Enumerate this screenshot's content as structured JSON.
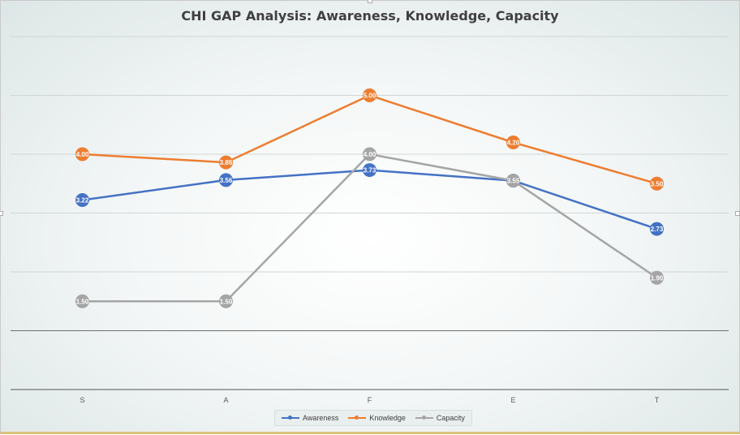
{
  "chart_data": {
    "type": "line",
    "title": "CHI GAP Analysis: Awareness, Knowledge, Capacity",
    "xlabel": "",
    "ylabel": "",
    "categories": [
      "S",
      "A",
      "F",
      "E",
      "T"
    ],
    "ylim": [
      0,
      6
    ],
    "grid": true,
    "legend_position": "bottom",
    "series": [
      {
        "name": "Awareness",
        "color": "#4472c4",
        "values": [
          3.22,
          3.56,
          3.73,
          3.55,
          2.73
        ],
        "labels": [
          "3.22",
          "3.56",
          "3.73",
          "3.55",
          "2.73"
        ]
      },
      {
        "name": "Knowledge",
        "color": "#ed7d31",
        "values": [
          4.0,
          3.86,
          5.0,
          4.2,
          3.5
        ],
        "labels": [
          "4.00",
          "3.86",
          "5.00",
          "4.20",
          "3.50"
        ]
      },
      {
        "name": "Capacity",
        "color": "#a5a5a5",
        "values": [
          1.5,
          1.5,
          4.0,
          3.55,
          1.9
        ],
        "labels": [
          "1.50",
          "1.50",
          "4.00",
          "3.55",
          "1.90"
        ]
      }
    ]
  }
}
